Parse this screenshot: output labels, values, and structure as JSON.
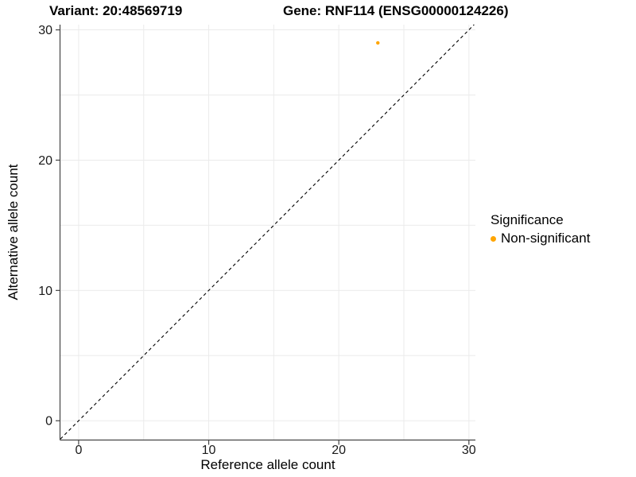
{
  "page": {
    "background": "#FFFFFF",
    "kind": "static-scatter-plot"
  },
  "colors": {
    "point": "#FFA500",
    "grid": "#EBEBEB",
    "axis": "#444444",
    "reference_line": "#000000",
    "text": "#000000"
  },
  "chart_data": {
    "type": "scatter",
    "titles": [
      "Variant: 20:48569719",
      "Gene: RNF114 (ENSG00000124226)"
    ],
    "xlabel": "Reference allele count",
    "ylabel": "Alternative allele count",
    "xlim": [
      -1.4,
      30.5
    ],
    "ylim": [
      -1.45,
      30.4
    ],
    "x_ticks": [
      0,
      10,
      20,
      30
    ],
    "y_ticks": [
      0,
      10,
      20,
      30
    ],
    "grid": true,
    "grid_interval": 5,
    "grid_range": [
      0,
      30
    ],
    "points": [
      {
        "x": 23,
        "y": 29,
        "series": "Non-significant",
        "color": "#FFA500"
      }
    ],
    "reference_line": {
      "type": "identity",
      "slope": 1,
      "intercept": 0,
      "style": "dashed",
      "color": "#000000"
    },
    "legend": {
      "title": "Significance",
      "position": "right",
      "entries": [
        {
          "label": "Non-significant",
          "color": "#FFA500",
          "marker": "circle-icon"
        }
      ]
    }
  }
}
